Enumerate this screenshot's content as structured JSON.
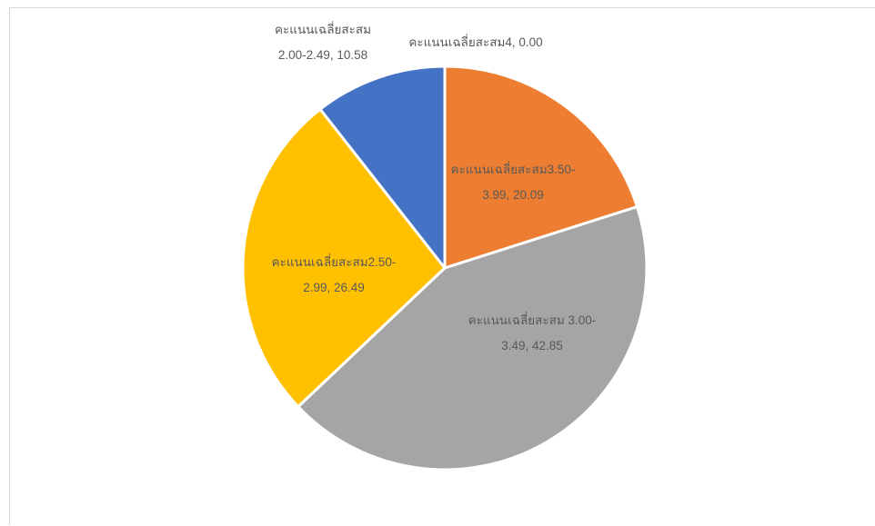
{
  "chart_data": {
    "type": "pie",
    "title": "",
    "colors": [
      "#ED7D31",
      "#A5A5A5",
      "#FFC000",
      "#4472C4",
      "#5B9BD5"
    ],
    "slices": [
      {
        "category": "คะแนนเฉลี่ยสะสม3.50-3.99",
        "value": 20.09,
        "label_lines": [
          "คะแนนเฉลี่ยสะสม3.50-",
          "3.99, 20.09"
        ]
      },
      {
        "category": "คะแนนเฉลี่ยสะสม 3.00-3.49",
        "value": 42.85,
        "label_lines": [
          "คะแนนเฉลี่ยสะสม 3.00-",
          "3.49, 42.85"
        ]
      },
      {
        "category": "คะแนนเฉลี่ยสะสม2.50-2.99",
        "value": 26.49,
        "label_lines": [
          "คะแนนเฉลี่ยสะสม2.50-",
          "2.99, 26.49"
        ]
      },
      {
        "category": "คะแนนเฉลี่ยสะสม 2.00-2.49",
        "value": 10.58,
        "label_lines": [
          "คะแนนเฉลี่ยสะสม",
          "2.00-2.49, 10.58"
        ]
      },
      {
        "category": "คะแนนเฉลี่ยสะสม4",
        "value": 0.0,
        "label_lines": [
          "คะแนนเฉลี่ยสะสม4, 0.00"
        ]
      }
    ]
  }
}
